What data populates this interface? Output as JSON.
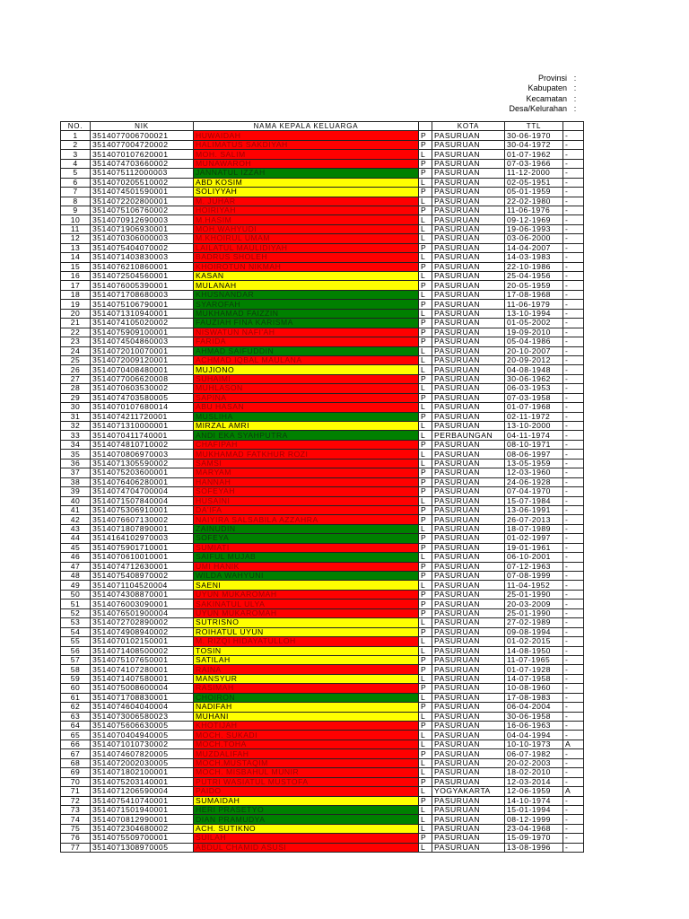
{
  "header_fields": [
    {
      "label": "Provinsi",
      "colon": ":"
    },
    {
      "label": "Kabupaten",
      "colon": ":"
    },
    {
      "label": "Kecamatan",
      "colon": ":"
    },
    {
      "label": "Desa/Kelurahan",
      "colon": ":"
    }
  ],
  "columns": [
    "NO.",
    "NIK",
    "NAMA KEPALA KELUARGA",
    "",
    "KOTA",
    "TTL",
    ""
  ],
  "colors": {
    "red": "#ff0000",
    "yellow": "#ffff00",
    "green": "#008000"
  },
  "rows": [
    {
      "no": "1",
      "nik": "3514077006700021",
      "name": "HUWAIDAH",
      "color": "red",
      "sex": "P",
      "kota": "PASURUAN",
      "ttl": "30-06-1970",
      "x": "-"
    },
    {
      "no": "2",
      "nik": "3514077004720002",
      "name": "HALIMATUS SAKDIYAH",
      "color": "red",
      "sex": "P",
      "kota": "PASURUAN",
      "ttl": "30-04-1972",
      "x": "-"
    },
    {
      "no": "3",
      "nik": "3514070107620001",
      "name": "MOH. SALIM",
      "color": "red",
      "sex": "L",
      "kota": "PASURUAN",
      "ttl": "01-07-1962",
      "x": "-"
    },
    {
      "no": "4",
      "nik": "3514074703660002",
      "name": "MUNAWAROH",
      "color": "red",
      "sex": "P",
      "kota": "PASURUAN",
      "ttl": "07-03-1966",
      "x": "-"
    },
    {
      "no": "5",
      "nik": "3514075112000003",
      "name": "JANNATUL IZZAH",
      "color": "green",
      "sex": "P",
      "kota": "PASURUAN",
      "ttl": "11-12-2000",
      "x": "-"
    },
    {
      "no": "6",
      "nik": "3514070205510002",
      "name": "ABD KOSIM",
      "color": "yellow",
      "sex": "L",
      "kota": "PASURUAN",
      "ttl": "02-05-1951",
      "x": "-"
    },
    {
      "no": "7",
      "nik": "3514074501590001",
      "name": "SOLIYYAH",
      "color": "yellow",
      "sex": "P",
      "kota": "PASURUAN",
      "ttl": "05-01-1959",
      "x": "-"
    },
    {
      "no": "8",
      "nik": "3514072202800001",
      "name": "M. JUHAR",
      "color": "red",
      "sex": "L",
      "kota": "PASURUAN",
      "ttl": "22-02-1980",
      "x": "-"
    },
    {
      "no": "9",
      "nik": "3514075106760002",
      "name": "HOIRIYAH",
      "color": "red",
      "sex": "P",
      "kota": "PASURUAN",
      "ttl": "11-06-1976",
      "x": "-"
    },
    {
      "no": "10",
      "nik": "3514070912690003",
      "name": "M.HASIM",
      "color": "red",
      "sex": "L",
      "kota": "PASURUAN",
      "ttl": "09-12-1969",
      "x": "-"
    },
    {
      "no": "11",
      "nik": "3514071906930001",
      "name": "MOH.WAHYUDI",
      "color": "red",
      "sex": "L",
      "kota": "PASURUAN",
      "ttl": "19-06-1993",
      "x": "-"
    },
    {
      "no": "12",
      "nik": "3514070306000003",
      "name": "M.KHOIRUL UMAM",
      "color": "red",
      "sex": "L",
      "kota": "PASURUAN",
      "ttl": "03-06-2000",
      "x": "-"
    },
    {
      "no": "13",
      "nik": "3514075404070002",
      "name": "LAILATUL MAULIDIYAH",
      "color": "red",
      "sex": "P",
      "kota": "PASURUAN",
      "ttl": "14-04-2007",
      "x": "-"
    },
    {
      "no": "14",
      "nik": "3514071403830003",
      "name": "BADRUS SHOLEH",
      "color": "red",
      "sex": "L",
      "kota": "PASURUAN",
      "ttl": "14-03-1983",
      "x": "-"
    },
    {
      "no": "15",
      "nik": "3514076210860001",
      "name": "KHOIROTUN NIKMAH",
      "color": "red",
      "sex": "P",
      "kota": "PASURUAN",
      "ttl": "22-10-1986",
      "x": "-"
    },
    {
      "no": "16",
      "nik": "3514072504560001",
      "name": "KASAN",
      "color": "yellow",
      "sex": "L",
      "kota": "PASURUAN",
      "ttl": "25-04-1956",
      "x": "-"
    },
    {
      "no": "17",
      "nik": "3514076005390001",
      "name": "MULANAH",
      "color": "yellow",
      "sex": "P",
      "kota": "PASURUAN",
      "ttl": "20-05-1959",
      "x": "-"
    },
    {
      "no": "18",
      "nik": "3514071708680003",
      "name": "KHUSNANDAR",
      "color": "green",
      "sex": "L",
      "kota": "PASURUAN",
      "ttl": "17-08-1968",
      "x": "-"
    },
    {
      "no": "19",
      "nik": "3514075106790001",
      "name": "SYAROFAH",
      "color": "green",
      "sex": "P",
      "kota": "PASURUAN",
      "ttl": "11-06-1979",
      "x": "-"
    },
    {
      "no": "20",
      "nik": "3514071310940001",
      "name": "MUKHAMAD FAIZZIN",
      "color": "green",
      "sex": "L",
      "kota": "PASURUAN",
      "ttl": "13-10-1994",
      "x": "-"
    },
    {
      "no": "21",
      "nik": "3514074105020002",
      "name": "FAUZIAH FINA KARISMA",
      "color": "green",
      "sex": "P",
      "kota": "PASURUAN",
      "ttl": "01-05-2002",
      "x": "-"
    },
    {
      "no": "22",
      "nik": "3514075909100001",
      "name": "NISWATUN NAFI'AH",
      "color": "red",
      "sex": "P",
      "kota": "PASURUAN",
      "ttl": "19-09-2010",
      "x": "-"
    },
    {
      "no": "23",
      "nik": "3514074504860003",
      "name": "FARIDA",
      "color": "red",
      "sex": "P",
      "kota": "PASURUAN",
      "ttl": "05-04-1986",
      "x": "-"
    },
    {
      "no": "24",
      "nik": "3514072010070001",
      "name": "AHMAD SAIFUDDIN",
      "color": "green",
      "sex": "L",
      "kota": "PASURUAN",
      "ttl": "20-10-2007",
      "x": "-"
    },
    {
      "no": "25",
      "nik": "3514072009120001",
      "name": "ACHMAD IQBAL MAULANA",
      "color": "red",
      "sex": "L",
      "kota": "PASURUAN",
      "ttl": "20-09-2012",
      "x": "-"
    },
    {
      "no": "26",
      "nik": "3514070408480001",
      "name": "MUJIONO",
      "color": "yellow",
      "sex": "L",
      "kota": "PASURUAN",
      "ttl": "04-08-1948",
      "x": "-"
    },
    {
      "no": "27",
      "nik": "3514077006620008",
      "name": "SUHAIMI",
      "color": "red",
      "sex": "P",
      "kota": "PASURUAN",
      "ttl": "30-06-1962",
      "x": "-"
    },
    {
      "no": "28",
      "nik": "3514070603530002",
      "name": "MUHLASON",
      "color": "red",
      "sex": "L",
      "kota": "PASURUAN",
      "ttl": "06-03-1953",
      "x": "-"
    },
    {
      "no": "29",
      "nik": "3514074703580005",
      "name": "SAPINA",
      "color": "red",
      "sex": "P",
      "kota": "PASURUAN",
      "ttl": "07-03-1958",
      "x": "-"
    },
    {
      "no": "30",
      "nik": "3514070107680014",
      "name": "ABU HASAN",
      "color": "red",
      "sex": "L",
      "kota": "PASURUAN",
      "ttl": "01-07-1968",
      "x": "-"
    },
    {
      "no": "31",
      "nik": "3514074211720001",
      "name": "MUSLIHA",
      "color": "green",
      "sex": "P",
      "kota": "PASURUAN",
      "ttl": "02-11-1972",
      "x": "-"
    },
    {
      "no": "32",
      "nik": "3514071310000001",
      "name": "MIRZAL AMRI",
      "color": "yellow",
      "sex": "L",
      "kota": "PASURUAN",
      "ttl": "13-10-2000",
      "x": "-"
    },
    {
      "no": "33",
      "nik": "3514070411740001",
      "name": "ANDI EKA SYAHPUTRA",
      "color": "green",
      "sex": "L",
      "kota": "PERBAUNGAN",
      "ttl": "04-11-1974",
      "x": "-"
    },
    {
      "no": "34",
      "nik": "3514074810710002",
      "name": "CHAFIPAH",
      "color": "red",
      "sex": "P",
      "kota": "PASURUAN",
      "ttl": "08-10-1971",
      "x": "-"
    },
    {
      "no": "35",
      "nik": "3514070806970003",
      "name": "MUKHAMAD FATKHUR ROZI",
      "color": "red",
      "sex": "L",
      "kota": "PASURUAN",
      "ttl": "08-06-1997",
      "x": "-"
    },
    {
      "no": "36",
      "nik": "3514071305590002",
      "name": "SAMSI",
      "color": "red",
      "sex": "L",
      "kota": "PASURUAN",
      "ttl": "13-05-1959",
      "x": "-"
    },
    {
      "no": "37",
      "nik": "3514075203600001",
      "name": "MARYAM",
      "color": "red",
      "sex": "P",
      "kota": "PASURUAN",
      "ttl": "12-03-1960",
      "x": "-"
    },
    {
      "no": "38",
      "nik": "3514076406280001",
      "name": "HANNAH",
      "color": "red",
      "sex": "P",
      "kota": "PASURUAN",
      "ttl": "24-06-1928",
      "x": "-"
    },
    {
      "no": "39",
      "nik": "3514074704700004",
      "name": "SOFEYAH",
      "color": "red",
      "sex": "P",
      "kota": "PASURUAN",
      "ttl": "07-04-1970",
      "x": "-"
    },
    {
      "no": "40",
      "nik": "3514071507840004",
      "name": "HUSAINI",
      "color": "red",
      "sex": "L",
      "kota": "PASURUAN",
      "ttl": "15-07-1984",
      "x": "-"
    },
    {
      "no": "41",
      "nik": "3514075306910001",
      "name": "DA'IFA",
      "color": "red",
      "sex": "P",
      "kota": "PASURUAN",
      "ttl": "13-06-1991",
      "x": "-"
    },
    {
      "no": "42",
      "nik": "3514076607130002",
      "name": "NAIYIRA SALSABILA AZZAHRA",
      "color": "red",
      "sex": "P",
      "kota": "PASURUAN",
      "ttl": "26-07-2013",
      "x": "-"
    },
    {
      "no": "43",
      "nik": "3514071807890001",
      "name": "ZAINUDIN",
      "color": "green",
      "sex": "L",
      "kota": "PASURUAN",
      "ttl": "18-07-1989",
      "x": "-"
    },
    {
      "no": "44",
      "nik": "3514164102970003",
      "name": "SOFEYA",
      "color": "green",
      "sex": "P",
      "kota": "PASURUAN",
      "ttl": "01-02-1997",
      "x": "-"
    },
    {
      "no": "45",
      "nik": "3514075901710001",
      "name": "SUMIATI",
      "color": "red",
      "sex": "P",
      "kota": "PASURUAN",
      "ttl": "19-01-1961",
      "x": "-"
    },
    {
      "no": "46",
      "nik": "3514070610010001",
      "name": "SAIFUL MUJAB",
      "color": "green",
      "sex": "L",
      "kota": "PASURUAN",
      "ttl": "06-10-2001",
      "x": "-"
    },
    {
      "no": "47",
      "nik": "3514074712630001",
      "name": "UMI HANIK",
      "color": "red",
      "sex": "P",
      "kota": "PASURUAN",
      "ttl": "07-12-1963",
      "x": "-"
    },
    {
      "no": "48",
      "nik": "3514075408970002",
      "name": "WILDA WAHYUNI",
      "color": "green",
      "sex": "P",
      "kota": "PASURUAN",
      "ttl": "07-08-1999",
      "x": "-"
    },
    {
      "no": "49",
      "nik": "3514071104520004",
      "name": "SAENI",
      "color": "yellow",
      "sex": "L",
      "kota": "PASURUAN",
      "ttl": "11-04-1952",
      "x": "-"
    },
    {
      "no": "50",
      "nik": "3514074308870001",
      "name": "UYUN MUKAROMAH",
      "color": "red",
      "sex": "P",
      "kota": "PASURUAN",
      "ttl": "25-01-1990",
      "x": "-"
    },
    {
      "no": "51",
      "nik": "3514076003090001",
      "name": "SAKINATUL ULYA",
      "color": "red",
      "sex": "P",
      "kota": "PASURUAN",
      "ttl": "20-03-2009",
      "x": "-"
    },
    {
      "no": "52",
      "nik": "3514076501900004",
      "name": "UYUN MUKAROMAH",
      "color": "red",
      "sex": "P",
      "kota": "PASURUAN",
      "ttl": "25-01-1990",
      "x": "-"
    },
    {
      "no": "53",
      "nik": "3514072702890002",
      "name": "SUTRISNO",
      "color": "yellow",
      "sex": "L",
      "kota": "PASURUAN",
      "ttl": "27-02-1989",
      "x": "-"
    },
    {
      "no": "54",
      "nik": "3514074908940002",
      "name": "ROIHATUL UYUN",
      "color": "yellow",
      "sex": "P",
      "kota": "PASURUAN",
      "ttl": "09-08-1994",
      "x": "-"
    },
    {
      "no": "55",
      "nik": "3514070102150001",
      "name": "M. RIZQI HIDAYATULLOH",
      "color": "red",
      "sex": "L",
      "kota": "PASURUAN",
      "ttl": "01-02-2015",
      "x": "-"
    },
    {
      "no": "56",
      "nik": "3514071408500002",
      "name": "TOSIN",
      "color": "yellow",
      "sex": "L",
      "kota": "PASURUAN",
      "ttl": "14-08-1950",
      "x": "-"
    },
    {
      "no": "57",
      "nik": "3514075107650001",
      "name": "SATILAH",
      "color": "yellow",
      "sex": "P",
      "kota": "PASURUAN",
      "ttl": "11-07-1965",
      "x": "-"
    },
    {
      "no": "58",
      "nik": "3514074107280001",
      "name": "RAINA",
      "color": "red",
      "sex": "P",
      "kota": "PASURUAN",
      "ttl": "01-07-1928",
      "x": "-"
    },
    {
      "no": "59",
      "nik": "3514071407580001",
      "name": "MANSYUR",
      "color": "yellow",
      "sex": "L",
      "kota": "PASURUAN",
      "ttl": "14-07-1958",
      "x": "-"
    },
    {
      "no": "60",
      "nik": "3514075008600004",
      "name": "RASIMAH",
      "color": "red",
      "sex": "P",
      "kota": "PASURUAN",
      "ttl": "10-08-1960",
      "x": "-"
    },
    {
      "no": "61",
      "nik": "3514071708830001",
      "name": "CHOIRON",
      "color": "green",
      "sex": "L",
      "kota": "PASURUAN",
      "ttl": "17-08-1983",
      "x": "-"
    },
    {
      "no": "62",
      "nik": "3514074604040004",
      "name": "NADIFAH",
      "color": "yellow",
      "sex": "P",
      "kota": "PASURUAN",
      "ttl": "06-04-2004",
      "x": "-"
    },
    {
      "no": "63",
      "nik": "3514073006580023",
      "name": "MUHANI",
      "color": "yellow",
      "sex": "L",
      "kota": "PASURUAN",
      "ttl": "30-06-1958",
      "x": "-"
    },
    {
      "no": "64",
      "nik": "3514075606630005",
      "name": "KHOTIJAH",
      "color": "red",
      "sex": "P",
      "kota": "PASURUAN",
      "ttl": "16-06-1963",
      "x": "-"
    },
    {
      "no": "65",
      "nik": "3514070404940005",
      "name": "MOCH. SUKADI",
      "color": "red",
      "sex": "L",
      "kota": "PASURUAN",
      "ttl": "04-04-1994",
      "x": "-"
    },
    {
      "no": "66",
      "nik": "3514071010730002",
      "name": "MOCH.TOHA",
      "color": "red",
      "sex": "L",
      "kota": "PASURUAN",
      "ttl": "10-10-1973",
      "x": "A"
    },
    {
      "no": "67",
      "nik": "3514074607820005",
      "name": "MUZDALIFAH",
      "color": "red",
      "sex": "P",
      "kota": "PASURUAN",
      "ttl": "06-07-1982",
      "x": "-"
    },
    {
      "no": "68",
      "nik": "3514072002030005",
      "name": "MOCH.MUSTAQIM",
      "color": "red",
      "sex": "L",
      "kota": "PASURUAN",
      "ttl": "20-02-2003",
      "x": "-"
    },
    {
      "no": "69",
      "nik": "3514071802100001",
      "name": "MOCH. MISBAHUL MUNIR",
      "color": "red",
      "sex": "L",
      "kota": "PASURUAN",
      "ttl": "18-02-2010",
      "x": "-"
    },
    {
      "no": "70",
      "nik": "3514075203140001",
      "name": "PUTRI WASIATUL MUSTOFA",
      "color": "red",
      "sex": "P",
      "kota": "PASURUAN",
      "ttl": "12-03-2014",
      "x": "-"
    },
    {
      "no": "71",
      "nik": "3514071206590004",
      "name": "PAIDO",
      "color": "red",
      "sex": "L",
      "kota": "YOGYAKARTA",
      "ttl": "12-06-1959",
      "x": "A"
    },
    {
      "no": "72",
      "nik": "3514075410740001",
      "name": "SUMAIDAH",
      "color": "yellow",
      "sex": "P",
      "kota": "PASURUAN",
      "ttl": "14-10-1974",
      "x": "-"
    },
    {
      "no": "73",
      "nik": "3514071501940001",
      "name": "HERI PRASETYO",
      "color": "green",
      "sex": "L",
      "kota": "PASURUAN",
      "ttl": "15-01-1994",
      "x": "-"
    },
    {
      "no": "74",
      "nik": "3514070812990001",
      "name": "DIAN PRAMUDYA",
      "color": "green",
      "sex": "L",
      "kota": "PASURUAN",
      "ttl": "08-12-1999",
      "x": "-"
    },
    {
      "no": "75",
      "nik": "3514072304680002",
      "name": "ACH. SUTIKNO",
      "color": "yellow",
      "sex": "L",
      "kota": "PASURUAN",
      "ttl": "23-04-1968",
      "x": "-"
    },
    {
      "no": "76",
      "nik": "3514075509700001",
      "name": "SUILAH",
      "color": "red",
      "sex": "P",
      "kota": "PASURUAN",
      "ttl": "15-09-1970",
      "x": "-"
    },
    {
      "no": "77",
      "nik": "3514071308970005",
      "name": "ABDUL CHAMID ASUSI",
      "color": "red",
      "sex": "L",
      "kota": "PASURUAN",
      "ttl": "13-08-1996",
      "x": "-"
    }
  ]
}
